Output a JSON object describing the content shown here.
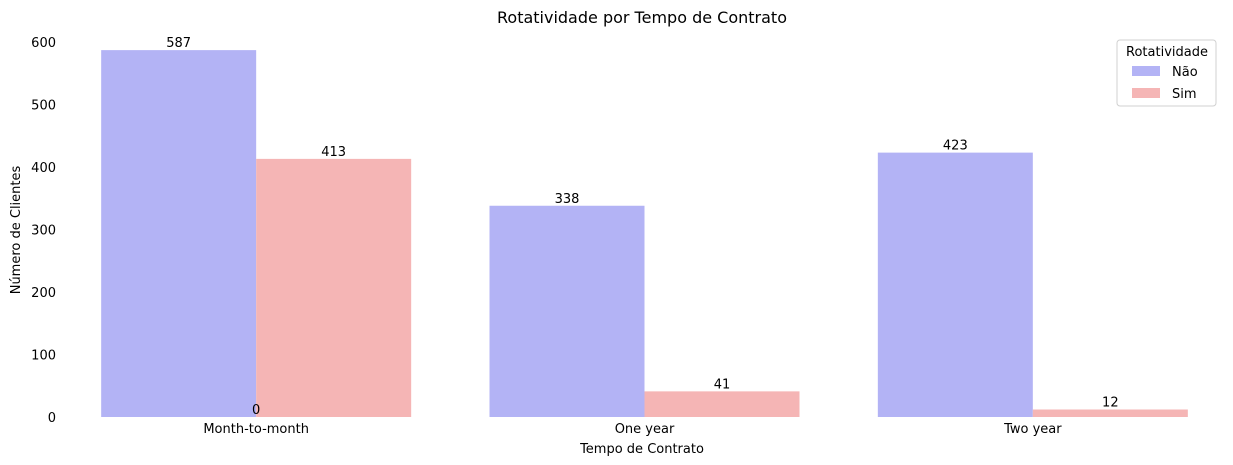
{
  "chart_data": {
    "type": "bar",
    "title": "Rotatividade por Tempo de Contrato",
    "xlabel": "Tempo de Contrato",
    "ylabel": "Número de Clientes",
    "categories": [
      "Month-to-month",
      "One year",
      "Two year"
    ],
    "series": [
      {
        "name": "Não",
        "values": [
          587,
          338,
          423
        ],
        "color": "#b3b3f5"
      },
      {
        "name": "Sim",
        "values": [
          413,
          41,
          12
        ],
        "color": "#f5b5b5"
      }
    ],
    "extra_labels": [
      {
        "text": "0",
        "category_index": 0,
        "value": 0
      }
    ],
    "ylim": [
      0,
      600
    ],
    "yticks": [
      0,
      100,
      200,
      300,
      400,
      500,
      600
    ],
    "grid": false,
    "legend": {
      "title": "Rotatividade",
      "placement": "top-right"
    }
  }
}
